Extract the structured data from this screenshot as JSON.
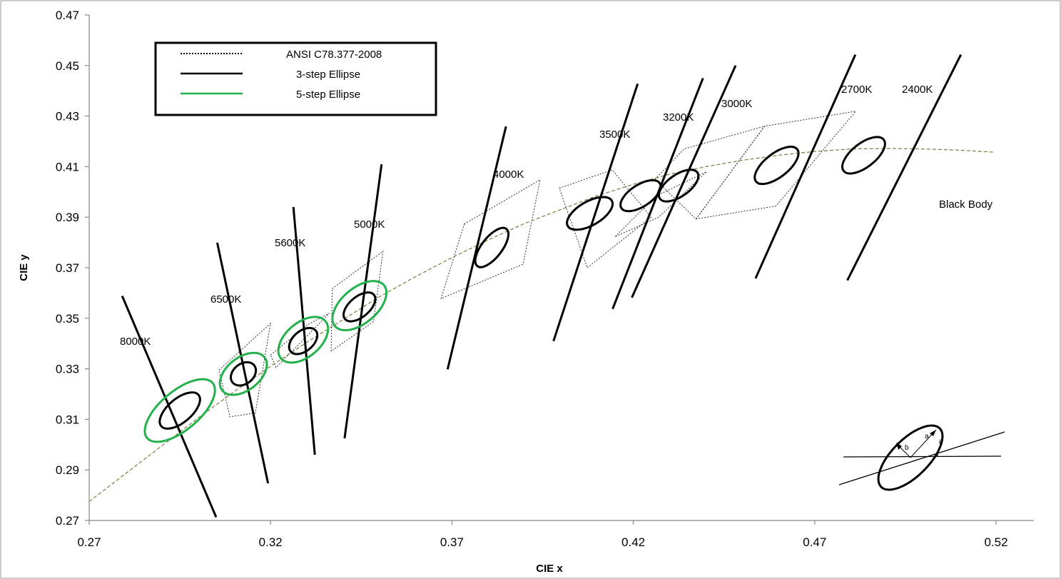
{
  "chart_data": {
    "type": "scatter",
    "title": "",
    "xlabel": "CIE x",
    "ylabel": "CIE y",
    "xlim": [
      0.27,
      0.52
    ],
    "ylim": [
      0.27,
      0.47
    ],
    "xticks": [
      "0.27",
      "0.32",
      "0.37",
      "0.42",
      "0.47",
      "0.52"
    ],
    "yticks": [
      "0.27",
      "0.29",
      "0.31",
      "0.33",
      "0.35",
      "0.37",
      "0.39",
      "0.41",
      "0.43",
      "0.45",
      "0.47"
    ],
    "grid": false,
    "legend_position": "top-left",
    "legend": [
      {
        "label": "ANSI C78.377-2008",
        "style": "dotted",
        "color": "#000000"
      },
      {
        "label": "3-step Ellipse",
        "style": "solid",
        "color": "#000000"
      },
      {
        "label": "5-step Ellipse",
        "style": "solid",
        "color": "#22b14c"
      }
    ],
    "colors": {
      "ellipse3": "#000000",
      "ellipse5": "#22b14c",
      "blackbody": "#7a7a3a",
      "quad": "#333333"
    },
    "blackbody_label": "Black Body",
    "blackbody": [
      [
        0.27,
        0.2775
      ],
      [
        0.28,
        0.2885
      ],
      [
        0.29,
        0.2995
      ],
      [
        0.3,
        0.3105
      ],
      [
        0.31,
        0.321
      ],
      [
        0.32,
        0.331
      ],
      [
        0.33,
        0.3405
      ],
      [
        0.34,
        0.3495
      ],
      [
        0.35,
        0.3585
      ],
      [
        0.36,
        0.3665
      ],
      [
        0.37,
        0.374
      ],
      [
        0.38,
        0.381
      ],
      [
        0.39,
        0.3875
      ],
      [
        0.4,
        0.393
      ],
      [
        0.41,
        0.3985
      ],
      [
        0.42,
        0.403
      ],
      [
        0.43,
        0.407
      ],
      [
        0.44,
        0.41
      ],
      [
        0.45,
        0.4125
      ],
      [
        0.46,
        0.4145
      ],
      [
        0.47,
        0.416
      ],
      [
        0.48,
        0.417
      ],
      [
        0.49,
        0.4172
      ],
      [
        0.5,
        0.417
      ],
      [
        0.51,
        0.4165
      ],
      [
        0.5198,
        0.4157
      ]
    ],
    "cct_lines": [
      {
        "label": "8000K",
        "x1": 0.2791,
        "y1": 0.3588,
        "x2": 0.305,
        "y2": 0.2713
      },
      {
        "label": "6500K",
        "x1": 0.3053,
        "y1": 0.3799,
        "x2": 0.3193,
        "y2": 0.2847
      },
      {
        "label": "5600K",
        "x1": 0.3263,
        "y1": 0.394,
        "x2": 0.3322,
        "y2": 0.296
      },
      {
        "label": "5000K",
        "x1": 0.3506,
        "y1": 0.4109,
        "x2": 0.3404,
        "y2": 0.3025
      },
      {
        "label": "4000K",
        "x1": 0.3688,
        "y1": 0.3298,
        "x2": 0.3849,
        "y2": 0.4259
      },
      {
        "label": "3500K",
        "x1": 0.398,
        "y1": 0.341,
        "x2": 0.4212,
        "y2": 0.4428
      },
      {
        "label": "3200K",
        "x1": 0.4143,
        "y1": 0.3537,
        "x2": 0.4392,
        "y2": 0.445
      },
      {
        "label": "3000K",
        "x1": 0.4196,
        "y1": 0.3582,
        "x2": 0.4482,
        "y2": 0.45
      },
      {
        "label": "2700K",
        "x1": 0.4537,
        "y1": 0.3658,
        "x2": 0.4812,
        "y2": 0.4543
      },
      {
        "label": "2400K",
        "x1": 0.479,
        "y1": 0.365,
        "x2": 0.5103,
        "y2": 0.4543
      }
    ],
    "ellipses_3step": [
      {
        "cct": "8000K",
        "cx": 0.295,
        "cy": 0.3135,
        "rx": 0.0067,
        "ry": 0.0047,
        "rot": 40
      },
      {
        "cct": "6500K",
        "cx": 0.3125,
        "cy": 0.328,
        "rx": 0.0038,
        "ry": 0.004,
        "rot": 38
      },
      {
        "cct": "5600K",
        "cx": 0.329,
        "cy": 0.341,
        "rx": 0.0045,
        "ry": 0.004,
        "rot": 40
      },
      {
        "cct": "5000K",
        "cx": 0.3445,
        "cy": 0.3545,
        "rx": 0.0052,
        "ry": 0.004,
        "rot": 40
      },
      {
        "cct": "4000K",
        "cx": 0.381,
        "cy": 0.378,
        "rx": 0.0065,
        "ry": 0.004,
        "rot": 52
      },
      {
        "cct": "3500K",
        "cx": 0.408,
        "cy": 0.3915,
        "rx": 0.007,
        "ry": 0.0047,
        "rot": 30
      },
      {
        "cct": "3200K",
        "cx": 0.422,
        "cy": 0.3985,
        "rx": 0.0063,
        "ry": 0.0043,
        "rot": 33
      },
      {
        "cct": "3000K",
        "cx": 0.4325,
        "cy": 0.4025,
        "rx": 0.0063,
        "ry": 0.0043,
        "rot": 35
      },
      {
        "cct": "2700K",
        "cx": 0.4595,
        "cy": 0.4105,
        "rx": 0.0072,
        "ry": 0.0047,
        "rot": 38
      },
      {
        "cct": "2400K",
        "cx": 0.4835,
        "cy": 0.4145,
        "rx": 0.007,
        "ry": 0.0047,
        "rot": 38
      }
    ],
    "ellipses_5step": [
      {
        "cct": "8000K",
        "cx": 0.295,
        "cy": 0.3135,
        "rx": 0.0118,
        "ry": 0.0077,
        "rot": 40
      },
      {
        "cct": "6500K",
        "cx": 0.3125,
        "cy": 0.328,
        "rx": 0.0074,
        "ry": 0.0065,
        "rot": 38
      },
      {
        "cct": "5600K",
        "cx": 0.329,
        "cy": 0.3415,
        "rx": 0.008,
        "ry": 0.0068,
        "rot": 40
      },
      {
        "cct": "5000K",
        "cx": 0.3445,
        "cy": 0.355,
        "rx": 0.0088,
        "ry": 0.007,
        "rot": 40
      }
    ],
    "ansi_quads": [
      [
        [
          0.3058,
          0.3295
        ],
        [
          0.32,
          0.348
        ],
        [
          0.3158,
          0.3125
        ],
        [
          0.3088,
          0.311
        ]
      ],
      [
        [
          0.32,
          0.3355
        ],
        [
          0.3306,
          0.3478
        ],
        [
          0.3362,
          0.352
        ],
        [
          0.3215,
          0.3305
        ]
      ],
      [
        [
          0.337,
          0.3617
        ],
        [
          0.351,
          0.3765
        ],
        [
          0.3484,
          0.3487
        ],
        [
          0.3367,
          0.337
        ]
      ],
      [
        [
          0.3734,
          0.3873
        ],
        [
          0.3943,
          0.4048
        ],
        [
          0.3896,
          0.3714
        ],
        [
          0.367,
          0.3578
        ]
      ],
      [
        [
          0.3996,
          0.4015
        ],
        [
          0.4142,
          0.4087
        ],
        [
          0.4249,
          0.39
        ],
        [
          0.4073,
          0.37
        ]
      ],
      [
        [
          0.415,
          0.3823
        ],
        [
          0.4262,
          0.3983
        ],
        [
          0.4402,
          0.408
        ],
        [
          0.427,
          0.39
        ]
      ],
      [
        [
          0.426,
          0.405
        ],
        [
          0.434,
          0.417
        ],
        [
          0.4562,
          0.426
        ],
        [
          0.4373,
          0.3893
        ]
      ],
      [
        [
          0.4373,
          0.3893
        ],
        [
          0.4562,
          0.426
        ],
        [
          0.4813,
          0.4319
        ],
        [
          0.4593,
          0.3944
        ]
      ]
    ],
    "inset": {
      "labels": [
        "a",
        "b",
        "θ"
      ]
    }
  }
}
